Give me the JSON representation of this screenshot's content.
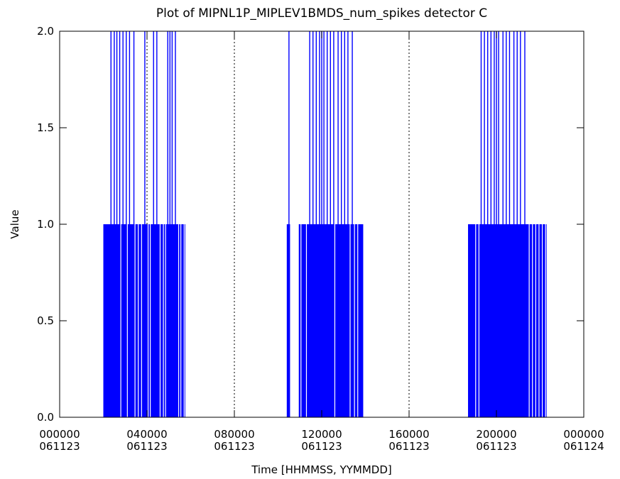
{
  "chart_data": {
    "type": "line",
    "title": "Plot of MIPNL1P_MIPLEV1BMDS_num_spikes detector C",
    "xlabel": "Time [HHMMSS, YYMMDD]",
    "ylabel": "Value",
    "xlim": [
      0,
      24
    ],
    "ylim": [
      0,
      2
    ],
    "x_unit": "hours since 061123 000000",
    "yticks": [
      {
        "value": 0.0,
        "label": "0.0"
      },
      {
        "value": 0.5,
        "label": "0.5"
      },
      {
        "value": 1.0,
        "label": "1.0"
      },
      {
        "value": 1.5,
        "label": "1.5"
      },
      {
        "value": 2.0,
        "label": "2.0"
      }
    ],
    "xticks": [
      {
        "value": 0,
        "time": "000000",
        "date": "061123"
      },
      {
        "value": 4,
        "time": "040000",
        "date": "061123"
      },
      {
        "value": 8,
        "time": "080000",
        "date": "061123"
      },
      {
        "value": 12,
        "time": "120000",
        "date": "061123"
      },
      {
        "value": 16,
        "time": "160000",
        "date": "061123"
      },
      {
        "value": 20,
        "time": "200000",
        "date": "061123"
      },
      {
        "value": 24,
        "time": "000000",
        "date": "061124"
      }
    ],
    "dotted_vlines": [
      4,
      8,
      12,
      16,
      20
    ],
    "line_color": "#0000ff",
    "segments": [
      {
        "name": "pass-1",
        "dense_regions": [
          [
            2.0,
            5.75
          ]
        ],
        "spikes_to_2": [
          2.35,
          2.5,
          2.62,
          2.75,
          2.9,
          3.05,
          3.2,
          3.4,
          3.9,
          4.3,
          4.45,
          4.95,
          5.05,
          5.15,
          5.3
        ],
        "spikes_to_1": [
          2.8,
          3.1,
          3.45,
          3.6,
          3.75,
          4.05,
          4.15,
          4.6,
          4.75,
          4.85,
          5.45,
          5.55,
          5.7
        ]
      },
      {
        "name": "pass-2",
        "dense_regions": [
          [
            10.4,
            10.55
          ],
          [
            10.95,
            13.9
          ]
        ],
        "spikes_to_2": [
          10.5,
          11.45,
          11.6,
          11.75,
          11.9,
          12.0,
          12.1,
          12.25,
          12.4,
          12.55,
          12.75,
          12.9,
          13.05,
          13.2,
          13.4
        ],
        "spikes_to_1": [
          10.75,
          11.05,
          11.3,
          12.6,
          13.3,
          13.5,
          13.65
        ]
      },
      {
        "name": "pass-3",
        "dense_regions": [
          [
            18.7,
            22.3
          ]
        ],
        "spikes_to_2": [
          19.3,
          19.45,
          19.6,
          19.75,
          19.9,
          20.0,
          20.1,
          20.3,
          20.45,
          20.6,
          20.8,
          20.95,
          21.1,
          21.3
        ],
        "spikes_to_1": [
          19.05,
          19.2,
          21.5,
          21.65,
          21.8,
          21.95,
          22.1,
          22.25
        ]
      }
    ]
  }
}
